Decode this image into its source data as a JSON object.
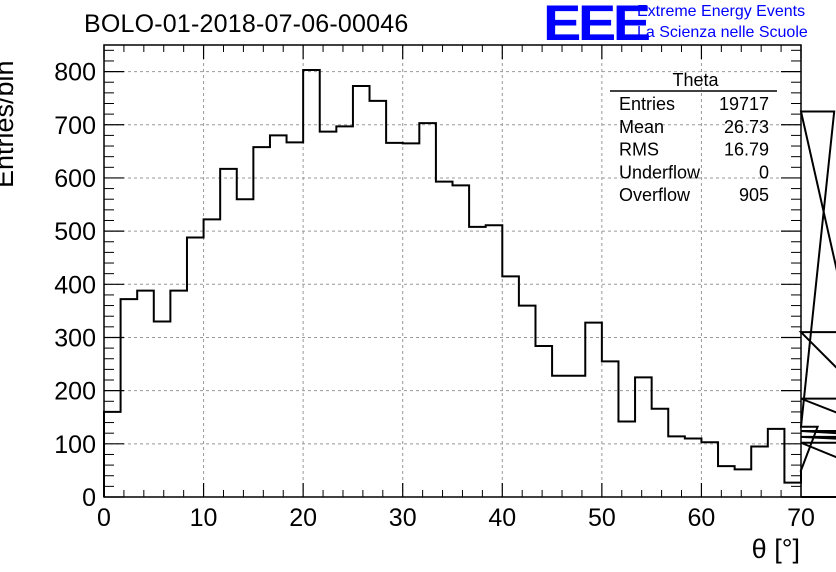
{
  "chart_data": {
    "type": "bar",
    "title": "BOLO-01-2018-07-06-00046",
    "xlabel": "θ [°]",
    "ylabel": "Entries/bin",
    "xlim": [
      0,
      70
    ],
    "ylim": [
      0,
      850
    ],
    "grid": true,
    "bin_width": 1.6667,
    "x_ticks": [
      "0",
      "10",
      "20",
      "30",
      "40",
      "50",
      "60",
      "70"
    ],
    "y_ticks": [
      "0",
      "100",
      "200",
      "300",
      "400",
      "500",
      "600",
      "700",
      "800"
    ],
    "values": [
      160,
      372,
      388,
      330,
      388,
      488,
      522,
      617,
      560,
      658,
      680,
      667,
      803,
      687,
      697,
      773,
      745,
      666,
      665,
      703,
      593,
      586,
      508,
      511,
      415,
      360,
      284,
      228,
      228,
      328,
      255,
      142,
      225,
      166,
      114,
      110,
      103,
      58,
      52,
      95,
      128,
      27,
      50,
      132,
      725,
      310,
      185,
      124,
      113,
      102,
      0
    ],
    "stats_box": {
      "title": "Theta",
      "rows": [
        {
          "label": "Entries",
          "value": "19717"
        },
        {
          "label": "Mean",
          "value": "26.73"
        },
        {
          "label": "RMS",
          "value": "16.79"
        },
        {
          "label": "Underflow",
          "value": "0"
        },
        {
          "label": "Overflow",
          "value": "905"
        }
      ]
    }
  },
  "logo": {
    "mark": "EEE",
    "line1": "Extreme Energy Events",
    "line2": "La Scienza nelle Scuole"
  }
}
